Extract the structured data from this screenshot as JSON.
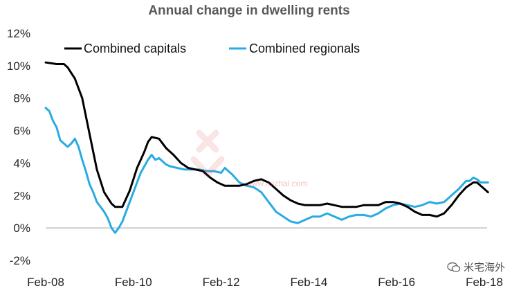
{
  "chart_data": {
    "type": "line",
    "title": "Annual change in dwelling rents",
    "xlabel": "",
    "ylabel": "",
    "x_start": "Feb-08",
    "x_end": "Feb-18",
    "x_ticks": [
      "Feb-08",
      "Feb-10",
      "Feb-12",
      "Feb-14",
      "Feb-16",
      "Feb-18"
    ],
    "y_ticks": [
      "-2%",
      "0%",
      "2%",
      "4%",
      "6%",
      "8%",
      "10%",
      "12%"
    ],
    "ylim": [
      -2,
      12
    ],
    "grid": false,
    "legend": "top",
    "series": [
      {
        "name": "Combined capitals",
        "color": "#000000",
        "values": [
          [
            "2008-02",
            10.2
          ],
          [
            "2008-05",
            10.1
          ],
          [
            "2008-07",
            10.1
          ],
          [
            "2008-08",
            9.9
          ],
          [
            "2008-10",
            9.2
          ],
          [
            "2008-12",
            8.0
          ],
          [
            "2009-02",
            5.8
          ],
          [
            "2009-04",
            3.6
          ],
          [
            "2009-06",
            2.2
          ],
          [
            "2009-08",
            1.5
          ],
          [
            "2009-09",
            1.3
          ],
          [
            "2009-11",
            1.3
          ],
          [
            "2010-01",
            2.3
          ],
          [
            "2010-03",
            3.7
          ],
          [
            "2010-05",
            4.7
          ],
          [
            "2010-06",
            5.3
          ],
          [
            "2010-07",
            5.6
          ],
          [
            "2010-09",
            5.5
          ],
          [
            "2010-11",
            4.9
          ],
          [
            "2011-01",
            4.5
          ],
          [
            "2011-03",
            4.0
          ],
          [
            "2011-05",
            3.7
          ],
          [
            "2011-07",
            3.6
          ],
          [
            "2011-09",
            3.5
          ],
          [
            "2011-11",
            3.1
          ],
          [
            "2012-01",
            2.8
          ],
          [
            "2012-03",
            2.6
          ],
          [
            "2012-05",
            2.6
          ],
          [
            "2012-07",
            2.6
          ],
          [
            "2012-09",
            2.7
          ],
          [
            "2012-11",
            2.9
          ],
          [
            "2013-01",
            3.0
          ],
          [
            "2013-03",
            2.8
          ],
          [
            "2013-05",
            2.4
          ],
          [
            "2013-07",
            2.0
          ],
          [
            "2013-09",
            1.7
          ],
          [
            "2013-11",
            1.5
          ],
          [
            "2014-01",
            1.4
          ],
          [
            "2014-03",
            1.4
          ],
          [
            "2014-05",
            1.4
          ],
          [
            "2014-07",
            1.5
          ],
          [
            "2014-09",
            1.4
          ],
          [
            "2014-11",
            1.3
          ],
          [
            "2015-01",
            1.3
          ],
          [
            "2015-03",
            1.3
          ],
          [
            "2015-05",
            1.4
          ],
          [
            "2015-07",
            1.4
          ],
          [
            "2015-09",
            1.4
          ],
          [
            "2015-11",
            1.6
          ],
          [
            "2016-01",
            1.6
          ],
          [
            "2016-03",
            1.5
          ],
          [
            "2016-05",
            1.3
          ],
          [
            "2016-07",
            1.0
          ],
          [
            "2016-09",
            0.8
          ],
          [
            "2016-11",
            0.8
          ],
          [
            "2017-01",
            0.7
          ],
          [
            "2017-03",
            0.9
          ],
          [
            "2017-05",
            1.4
          ],
          [
            "2017-07",
            2.0
          ],
          [
            "2017-09",
            2.5
          ],
          [
            "2017-11",
            2.8
          ],
          [
            "2017-12",
            2.8
          ],
          [
            "2018-01",
            2.6
          ],
          [
            "2018-02",
            2.4
          ],
          [
            "2018-03",
            2.2
          ]
        ]
      },
      {
        "name": "Combined regionals",
        "color": "#29abe2",
        "values": [
          [
            "2008-02",
            7.4
          ],
          [
            "2008-03",
            7.2
          ],
          [
            "2008-04",
            6.6
          ],
          [
            "2008-05",
            6.2
          ],
          [
            "2008-06",
            5.4
          ],
          [
            "2008-07",
            5.2
          ],
          [
            "2008-08",
            5.0
          ],
          [
            "2008-09",
            5.2
          ],
          [
            "2008-10",
            5.5
          ],
          [
            "2008-11",
            5.0
          ],
          [
            "2008-12",
            4.2
          ],
          [
            "2009-01",
            3.5
          ],
          [
            "2009-02",
            2.7
          ],
          [
            "2009-03",
            2.2
          ],
          [
            "2009-04",
            1.6
          ],
          [
            "2009-05",
            1.3
          ],
          [
            "2009-06",
            1.0
          ],
          [
            "2009-07",
            0.6
          ],
          [
            "2009-08",
            0.0
          ],
          [
            "2009-09",
            -0.3
          ],
          [
            "2009-10",
            0.0
          ],
          [
            "2009-11",
            0.4
          ],
          [
            "2009-12",
            1.0
          ],
          [
            "2010-01",
            1.6
          ],
          [
            "2010-02",
            2.2
          ],
          [
            "2010-03",
            2.8
          ],
          [
            "2010-04",
            3.4
          ],
          [
            "2010-05",
            3.8
          ],
          [
            "2010-06",
            4.2
          ],
          [
            "2010-07",
            4.5
          ],
          [
            "2010-08",
            4.2
          ],
          [
            "2010-09",
            4.3
          ],
          [
            "2010-10",
            4.1
          ],
          [
            "2010-11",
            3.9
          ],
          [
            "2010-12",
            3.8
          ],
          [
            "2011-02",
            3.7
          ],
          [
            "2011-04",
            3.6
          ],
          [
            "2011-06",
            3.6
          ],
          [
            "2011-08",
            3.6
          ],
          [
            "2011-10",
            3.5
          ],
          [
            "2011-12",
            3.5
          ],
          [
            "2012-02",
            3.4
          ],
          [
            "2012-03",
            3.7
          ],
          [
            "2012-05",
            3.3
          ],
          [
            "2012-07",
            2.8
          ],
          [
            "2012-09",
            2.6
          ],
          [
            "2012-11",
            2.5
          ],
          [
            "2013-01",
            2.2
          ],
          [
            "2013-03",
            1.6
          ],
          [
            "2013-05",
            1.0
          ],
          [
            "2013-07",
            0.7
          ],
          [
            "2013-09",
            0.4
          ],
          [
            "2013-11",
            0.3
          ],
          [
            "2014-01",
            0.5
          ],
          [
            "2014-03",
            0.7
          ],
          [
            "2014-05",
            0.7
          ],
          [
            "2014-07",
            0.9
          ],
          [
            "2014-09",
            0.7
          ],
          [
            "2014-11",
            0.5
          ],
          [
            "2015-01",
            0.7
          ],
          [
            "2015-03",
            0.8
          ],
          [
            "2015-05",
            0.8
          ],
          [
            "2015-07",
            0.7
          ],
          [
            "2015-09",
            0.9
          ],
          [
            "2015-11",
            1.2
          ],
          [
            "2016-01",
            1.4
          ],
          [
            "2016-03",
            1.5
          ],
          [
            "2016-05",
            1.4
          ],
          [
            "2016-07",
            1.3
          ],
          [
            "2016-09",
            1.4
          ],
          [
            "2016-11",
            1.6
          ],
          [
            "2017-01",
            1.5
          ],
          [
            "2017-03",
            1.6
          ],
          [
            "2017-05",
            2.0
          ],
          [
            "2017-07",
            2.4
          ],
          [
            "2017-09",
            2.9
          ],
          [
            "2017-10",
            2.9
          ],
          [
            "2017-11",
            3.1
          ],
          [
            "2017-12",
            3.0
          ],
          [
            "2018-01",
            2.8
          ],
          [
            "2018-03",
            2.8
          ]
        ]
      }
    ]
  },
  "watermark": {
    "logo_text": "米宅",
    "url": "www.mizhai.com"
  },
  "branding": {
    "label": "米宅海外",
    "icon": "wechat-icon"
  }
}
